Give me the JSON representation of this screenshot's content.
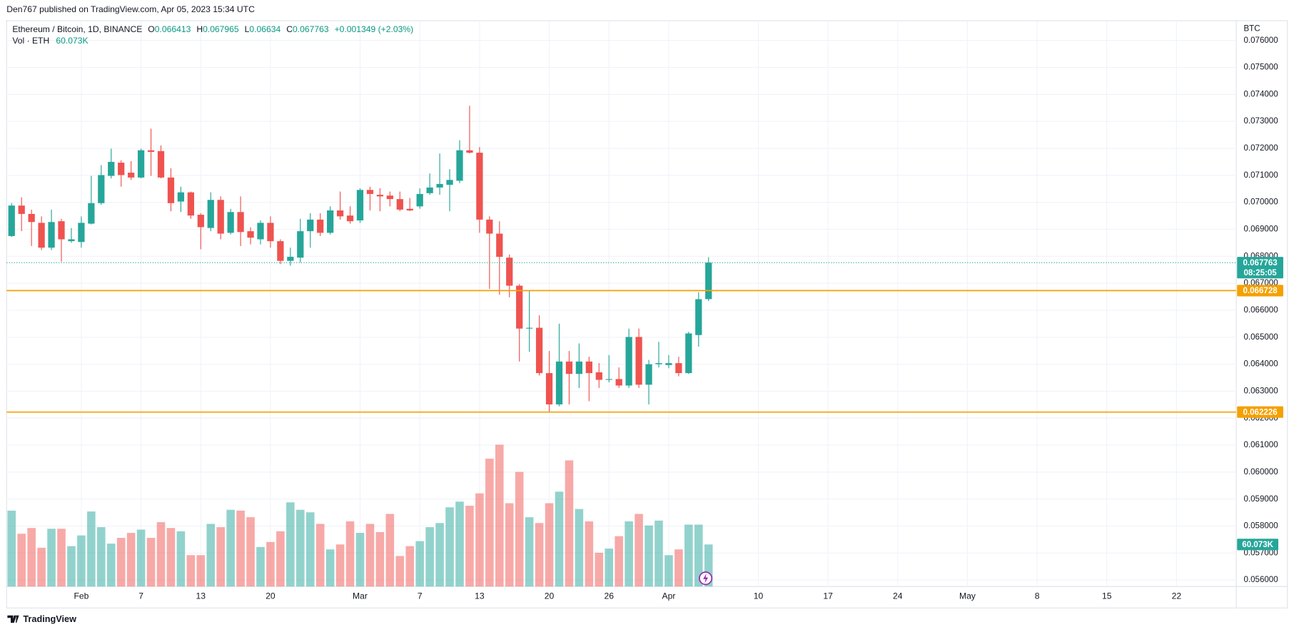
{
  "header": {
    "publisher": "Den767 published on TradingView.com, Apr 05, 2023 15:34 UTC",
    "brand": "TradingView"
  },
  "chart_data": {
    "type": "candlestick",
    "legend": {
      "symbol": "Ethereum / Bitcoin, 1D, BINANCE",
      "labels": [
        "O",
        "H",
        "L",
        "C"
      ],
      "change": "+0.001349 (+2.03%)"
    },
    "currency": "BTC",
    "countdown": "08:25:05",
    "up_color": "#26a69a",
    "down_color": "#ef5350",
    "grid": true,
    "x": [
      "2023-01-25",
      "2023-01-26",
      "2023-01-27",
      "2023-01-28",
      "2023-01-29",
      "2023-01-30",
      "2023-01-31",
      "2023-02-01",
      "2023-02-02",
      "2023-02-03",
      "2023-02-04",
      "2023-02-05",
      "2023-02-06",
      "2023-02-07",
      "2023-02-08",
      "2023-02-09",
      "2023-02-10",
      "2023-02-11",
      "2023-02-12",
      "2023-02-13",
      "2023-02-14",
      "2023-02-15",
      "2023-02-16",
      "2023-02-17",
      "2023-02-18",
      "2023-02-19",
      "2023-02-20",
      "2023-02-21",
      "2023-02-22",
      "2023-02-23",
      "2023-02-24",
      "2023-02-25",
      "2023-02-26",
      "2023-02-27",
      "2023-02-28",
      "2023-03-01",
      "2023-03-02",
      "2023-03-03",
      "2023-03-04",
      "2023-03-05",
      "2023-03-06",
      "2023-03-07",
      "2023-03-08",
      "2023-03-09",
      "2023-03-10",
      "2023-03-11",
      "2023-03-12",
      "2023-03-13",
      "2023-03-14",
      "2023-03-15",
      "2023-03-16",
      "2023-03-17",
      "2023-03-18",
      "2023-03-19",
      "2023-03-20",
      "2023-03-21",
      "2023-03-22",
      "2023-03-23",
      "2023-03-24",
      "2023-03-25",
      "2023-03-26",
      "2023-03-27",
      "2023-03-28",
      "2023-03-29",
      "2023-03-30",
      "2023-03-31",
      "2023-04-01",
      "2023-04-02",
      "2023-04-03",
      "2023-04-04",
      "2023-04-05"
    ],
    "open": [
      0.06875,
      0.06988,
      0.06957,
      0.06924,
      0.06832,
      0.0693,
      0.06856,
      0.06853,
      0.06921,
      0.06997,
      0.07098,
      0.07147,
      0.0711,
      0.07092,
      0.07193,
      0.0719,
      0.07092,
      0.07003,
      0.07037,
      0.06954,
      0.06905,
      0.07009,
      0.06887,
      0.06964,
      0.06893,
      0.06863,
      0.06924,
      0.06856,
      0.06783,
      0.06795,
      0.06893,
      0.06936,
      0.06887,
      0.0697,
      0.06951,
      0.06933,
      0.07046,
      0.07028,
      0.07025,
      0.07012,
      0.06976,
      0.06985,
      0.07034,
      0.07055,
      0.07065,
      0.0708,
      0.07193,
      0.07184,
      0.06936,
      0.06884,
      0.06795,
      0.06691,
      0.06532,
      0.06535,
      0.06367,
      0.06251,
      0.0641,
      0.06364,
      0.0641,
      0.0637,
      0.06342,
      0.06345,
      0.06321,
      0.06501,
      0.06324,
      0.064,
      0.06397,
      0.06404,
      0.06367,
      0.06508,
      0.066413
    ],
    "high": [
      0.06997,
      0.07019,
      0.06973,
      0.06948,
      0.06973,
      0.06939,
      0.06905,
      0.06948,
      0.07098,
      0.07138,
      0.07199,
      0.07156,
      0.07153,
      0.07199,
      0.07273,
      0.07211,
      0.07126,
      0.07058,
      0.0704,
      0.0696,
      0.07037,
      0.07022,
      0.06976,
      0.07022,
      0.06908,
      0.06933,
      0.06948,
      0.06863,
      0.06832,
      0.06939,
      0.0696,
      0.0696,
      0.06985,
      0.0704,
      0.06985,
      0.07052,
      0.07058,
      0.07052,
      0.0704,
      0.0704,
      0.07016,
      0.07052,
      0.07107,
      0.07181,
      0.07123,
      0.0723,
      0.07358,
      0.07205,
      0.06948,
      0.0693,
      0.06807,
      0.06697,
      0.06673,
      0.06581,
      0.06449,
      0.0655,
      0.06449,
      0.06477,
      0.06428,
      0.06404,
      0.06434,
      0.06388,
      0.06532,
      0.06532,
      0.06416,
      0.06483,
      0.06434,
      0.06428,
      0.0652,
      0.06667,
      0.067965
    ],
    "low": [
      0.06872,
      0.06893,
      0.06838,
      0.06823,
      0.06823,
      0.0678,
      0.0685,
      0.06832,
      0.06918,
      0.06991,
      0.07089,
      0.07058,
      0.07083,
      0.07089,
      0.07098,
      0.07089,
      0.06967,
      0.06964,
      0.06939,
      0.06826,
      0.06893,
      0.06863,
      0.06881,
      0.06838,
      0.06844,
      0.06844,
      0.06832,
      0.06771,
      0.06765,
      0.06777,
      0.06832,
      0.06875,
      0.06881,
      0.06936,
      0.06921,
      0.06924,
      0.0697,
      0.06967,
      0.06985,
      0.06967,
      0.06967,
      0.06976,
      0.07028,
      0.07028,
      0.06967,
      0.07071,
      0.07181,
      0.06887,
      0.06679,
      0.06658,
      0.06648,
      0.0641,
      0.06446,
      0.06358,
      0.06223,
      0.06244,
      0.06251,
      0.06312,
      0.06263,
      0.06312,
      0.06333,
      0.06312,
      0.06312,
      0.06312,
      0.06251,
      0.06388,
      0.06385,
      0.06355,
      0.06364,
      0.06465,
      0.06634
    ],
    "close": [
      0.06988,
      0.06957,
      0.06927,
      0.06832,
      0.06927,
      0.06863,
      0.06863,
      0.06924,
      0.06997,
      0.07101,
      0.0715,
      0.07101,
      0.07092,
      0.07193,
      0.07187,
      0.07092,
      0.06997,
      0.07037,
      0.06951,
      0.06908,
      0.07009,
      0.06884,
      0.06964,
      0.0689,
      0.06869,
      0.06924,
      0.06856,
      0.06783,
      0.06798,
      0.06893,
      0.06936,
      0.06887,
      0.0697,
      0.06948,
      0.0693,
      0.07046,
      0.07031,
      0.07022,
      0.07012,
      0.06973,
      0.0697,
      0.07031,
      0.07055,
      0.07068,
      0.07083,
      0.07193,
      0.07184,
      0.06936,
      0.06884,
      0.06798,
      0.06691,
      0.06532,
      0.06535,
      0.06367,
      0.06251,
      0.0641,
      0.06364,
      0.0641,
      0.06367,
      0.06342,
      0.06345,
      0.06321,
      0.06501,
      0.06324,
      0.064,
      0.06404,
      0.06404,
      0.06367,
      0.06514,
      0.06641,
      0.067763
    ],
    "volume": {
      "name": "Vol · ETH",
      "ylim": [
        0,
        805800
      ],
      "values": [
        108400,
        75400,
        83600,
        55400,
        82500,
        82500,
        57700,
        73000,
        107200,
        84800,
        61300,
        69500,
        76600,
        81300,
        69500,
        91900,
        83600,
        78900,
        44800,
        44800,
        89500,
        84800,
        109600,
        108400,
        99000,
        56500,
        63600,
        78900,
        120200,
        109600,
        106000,
        89500,
        53000,
        60100,
        93100,
        76600,
        89500,
        77700,
        103700,
        43600,
        57700,
        64800,
        84800,
        90700,
        113100,
        121300,
        115400,
        133100,
        182600,
        202600,
        119000,
        163700,
        99000,
        90700,
        119000,
        135500,
        180200,
        110700,
        93100,
        48300,
        54200,
        71900,
        93100,
        103700,
        87200,
        94200,
        44800,
        53000,
        88400,
        88400,
        60073
      ],
      "value_labels": [
        null,
        null,
        null,
        null,
        null,
        null,
        null,
        null,
        null,
        null,
        null,
        null,
        null,
        null,
        null,
        null,
        null,
        null,
        null,
        null,
        null,
        null,
        null,
        null,
        null,
        null,
        null,
        null,
        null,
        null,
        null,
        null,
        null,
        null,
        null,
        null,
        null,
        null,
        null,
        null,
        null,
        null,
        null,
        null,
        null,
        null,
        null,
        null,
        null,
        null,
        null,
        null,
        null,
        null,
        null,
        null,
        null,
        null,
        null,
        null,
        null,
        null,
        null,
        null,
        null,
        null,
        null,
        null,
        null,
        null,
        "60.073K"
      ]
    },
    "hlines": [
      {
        "value": 0.066728,
        "color": "#f5a000"
      },
      {
        "value": 0.062226,
        "color": "#f5a000"
      }
    ],
    "xlim": [
      "2023-01-24",
      "2023-05-28"
    ],
    "xticks": [
      {
        "value": "2023-02-01",
        "label": "Feb"
      },
      {
        "value": "2023-02-07",
        "label": "7"
      },
      {
        "value": "2023-02-13",
        "label": "13"
      },
      {
        "value": "2023-02-20",
        "label": "20"
      },
      {
        "value": "2023-03-01",
        "label": "Mar"
      },
      {
        "value": "2023-03-07",
        "label": "7"
      },
      {
        "value": "2023-03-13",
        "label": "13"
      },
      {
        "value": "2023-03-20",
        "label": "20"
      },
      {
        "value": "2023-03-26",
        "label": "26"
      },
      {
        "value": "2023-04-01",
        "label": "Apr"
      },
      {
        "value": "2023-04-10",
        "label": "10"
      },
      {
        "value": "2023-04-17",
        "label": "17"
      },
      {
        "value": "2023-04-24",
        "label": "24"
      },
      {
        "value": "2023-05-01",
        "label": "May"
      },
      {
        "value": "2023-05-08",
        "label": "8"
      },
      {
        "value": "2023-05-15",
        "label": "15"
      },
      {
        "value": "2023-05-22",
        "label": "22"
      }
    ],
    "ylim": [
      0.05576,
      0.07667
    ],
    "yticks": [
      {
        "value": 0.056,
        "label": "0.056000"
      },
      {
        "value": 0.057,
        "label": "0.057000"
      },
      {
        "value": 0.058,
        "label": "0.058000"
      },
      {
        "value": 0.059,
        "label": "0.059000"
      },
      {
        "value": 0.06,
        "label": "0.060000"
      },
      {
        "value": 0.061,
        "label": "0.061000"
      },
      {
        "value": 0.062,
        "label": "0.062000"
      },
      {
        "value": 0.063,
        "label": "0.063000"
      },
      {
        "value": 0.064,
        "label": "0.064000"
      },
      {
        "value": 0.065,
        "label": "0.065000"
      },
      {
        "value": 0.066,
        "label": "0.066000"
      },
      {
        "value": 0.067,
        "label": "0.067000"
      },
      {
        "value": 0.068,
        "label": "0.068000"
      },
      {
        "value": 0.069,
        "label": "0.069000"
      },
      {
        "value": 0.07,
        "label": "0.070000"
      },
      {
        "value": 0.071,
        "label": "0.071000"
      },
      {
        "value": 0.072,
        "label": "0.072000"
      },
      {
        "value": 0.073,
        "label": "0.073000"
      },
      {
        "value": 0.074,
        "label": "0.074000"
      },
      {
        "value": 0.075,
        "label": "0.075000"
      },
      {
        "value": 0.076,
        "label": "0.076000"
      }
    ]
  }
}
